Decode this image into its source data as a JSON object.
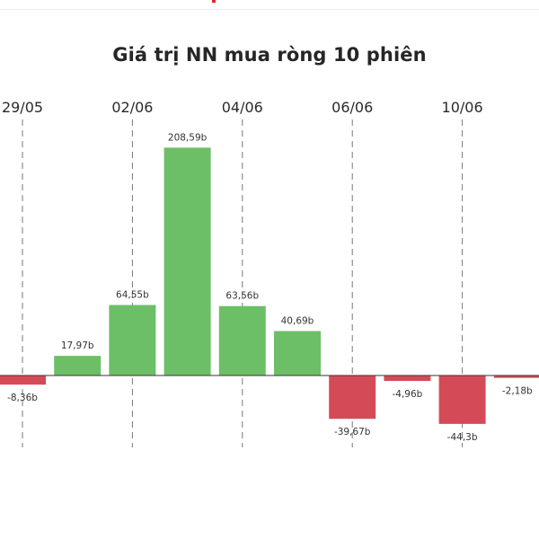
{
  "title": "Giá trị NN mua ròng 10 phiên",
  "colors": {
    "positive": "#6cbf67",
    "negative": "#d44b57",
    "baseline": "#333333",
    "gridline": "#777777",
    "accent": "#e02828"
  },
  "chart_data": {
    "type": "bar",
    "title": "Giá trị NN mua ròng 10 phiên",
    "xlabel": "",
    "ylabel": "",
    "grid": "vertical dashed lines at labeled dates",
    "date_labels": [
      "29/05",
      "02/06",
      "04/06",
      "06/06",
      "10/06"
    ],
    "values": [
      -8.36,
      17.97,
      64.55,
      208.59,
      63.56,
      40.69,
      -39.67,
      -4.96,
      -44.3,
      -2.18
    ],
    "value_labels": [
      "-8,36b",
      "17,97b",
      "64,55b",
      "208,59b",
      "63,56b",
      "40,69b",
      "-39,67b",
      "-4,96b",
      "-44,3b",
      "-2,18b"
    ],
    "unit": "b"
  }
}
